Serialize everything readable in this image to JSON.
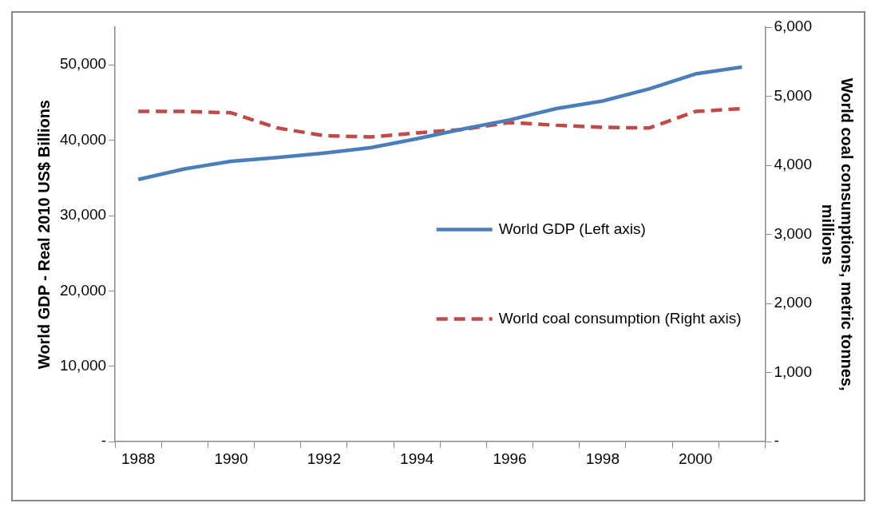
{
  "chart_data": {
    "type": "line",
    "ylabel": "World GDP - Real 2010 US$ Billions",
    "y2label": "World coal consumptions, metric tonnes, millions",
    "categories": [
      "1988",
      null,
      "1990",
      null,
      "1992",
      null,
      "1994",
      null,
      "1996",
      null,
      "1998",
      null,
      "2000",
      null
    ],
    "series": [
      {
        "name": "World GDP (Left axis)",
        "color": "#4a7ebb",
        "line_style": "solid",
        "values": [
          34800,
          36200,
          37200,
          37700,
          38300,
          39000,
          40200,
          41500,
          42700,
          44200,
          45200,
          46800,
          48800,
          49700
        ]
      },
      {
        "name": "World coal consumption (Right axis)",
        "color": "#be4b48",
        "line_style": "dashed",
        "axis": "y2",
        "values": [
          4780,
          4780,
          4760,
          4540,
          4430,
          4410,
          4470,
          4520,
          4620,
          4580,
          4550,
          4540,
          4780,
          4820
        ]
      }
    ],
    "ylim": [
      0,
      55000
    ],
    "yticks": [
      {
        "value": 0,
        "label": "-"
      },
      {
        "value": 10000,
        "label": "10,000"
      },
      {
        "value": 20000,
        "label": "20,000"
      },
      {
        "value": 30000,
        "label": "30,000"
      },
      {
        "value": 40000,
        "label": "40,000"
      },
      {
        "value": 50000,
        "label": "50,000"
      }
    ],
    "y2lim": [
      0,
      6000
    ],
    "y2ticks": [
      {
        "value": 0,
        "label": "-"
      },
      {
        "value": 1000,
        "label": "1,000"
      },
      {
        "value": 2000,
        "label": "2,000"
      },
      {
        "value": 3000,
        "label": "3,000"
      },
      {
        "value": 4000,
        "label": "4,000"
      },
      {
        "value": 5000,
        "label": "5,000"
      },
      {
        "value": 6000,
        "label": "6,000"
      }
    ],
    "grid": false,
    "legend": "right",
    "marker": "none"
  }
}
